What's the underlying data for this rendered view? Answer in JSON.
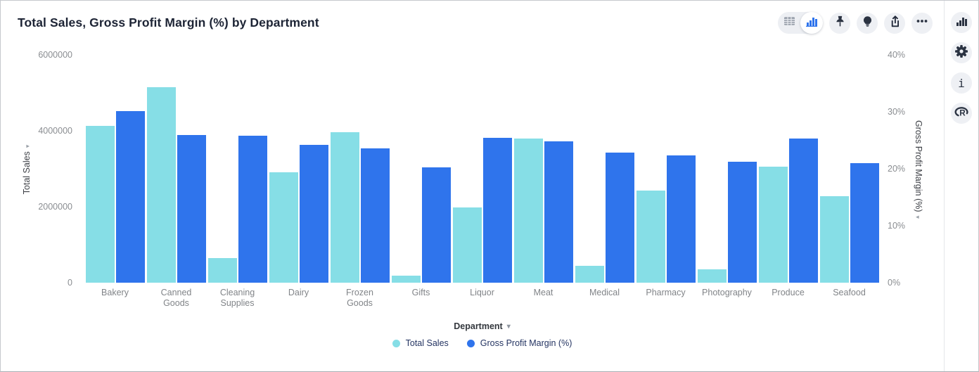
{
  "header": {
    "title": "Total Sales, Gross Profit Margin (%) by Department"
  },
  "toolbar": {
    "view_toggle": {
      "options": [
        "table-view",
        "chart-view"
      ],
      "selected": "chart-view",
      "icons": [
        "table-view-icon",
        "bar-chart-icon"
      ]
    },
    "buttons": [
      "pin-icon",
      "lightbulb-icon",
      "export-icon",
      "more-options-icon"
    ]
  },
  "sidebar": {
    "buttons": [
      "chart-type-icon",
      "settings-gear-icon",
      "info-icon",
      "r-logo-icon"
    ],
    "info_glyph": "i"
  },
  "glyphs": {
    "axis_arrow": "▾",
    "dropdown_arrow": "▾"
  },
  "colors": {
    "series_total_sales": "#86DEE6",
    "series_gross_profit": "#2F74EC",
    "title_text": "#1d2435",
    "tick_text": "#8a8d91",
    "icon_dark": "#2b3342",
    "icon_blue": "#2F74EC",
    "legend_text": "#243462"
  },
  "chart_data": {
    "type": "bar",
    "title": "Total Sales, Gross Profit Margin (%) by Department",
    "xlabel": "Department",
    "grid": false,
    "legend_position": "bottom",
    "categories": [
      "Bakery",
      "Canned Goods",
      "Cleaning Supplies",
      "Dairy",
      "Frozen Goods",
      "Gifts",
      "Liquor",
      "Meat",
      "Medical",
      "Pharmacy",
      "Photography",
      "Produce",
      "Seafood"
    ],
    "series": [
      {
        "name": "Total Sales",
        "axis": "left",
        "color": "#86DEE6",
        "values": [
          4130000,
          5140000,
          640000,
          2910000,
          3970000,
          190000,
          1990000,
          3800000,
          450000,
          2420000,
          350000,
          3060000,
          2280000
        ]
      },
      {
        "name": "Gross Profit Margin (%)",
        "axis": "right",
        "color": "#2F74EC",
        "values": [
          30.1,
          25.9,
          25.8,
          24.2,
          23.6,
          20.2,
          25.4,
          24.8,
          22.9,
          22.3,
          21.2,
          25.3,
          21.0
        ]
      }
    ],
    "left_axis": {
      "label": "Total Sales",
      "min": 0,
      "max": 6000000,
      "ticks": [
        "0",
        "2000000",
        "4000000",
        "6000000"
      ]
    },
    "right_axis": {
      "label": "Gross Profit Margin (%)",
      "min": 0,
      "max": 40,
      "ticks": [
        "0%",
        "10%",
        "20%",
        "30%",
        "40%"
      ]
    }
  }
}
